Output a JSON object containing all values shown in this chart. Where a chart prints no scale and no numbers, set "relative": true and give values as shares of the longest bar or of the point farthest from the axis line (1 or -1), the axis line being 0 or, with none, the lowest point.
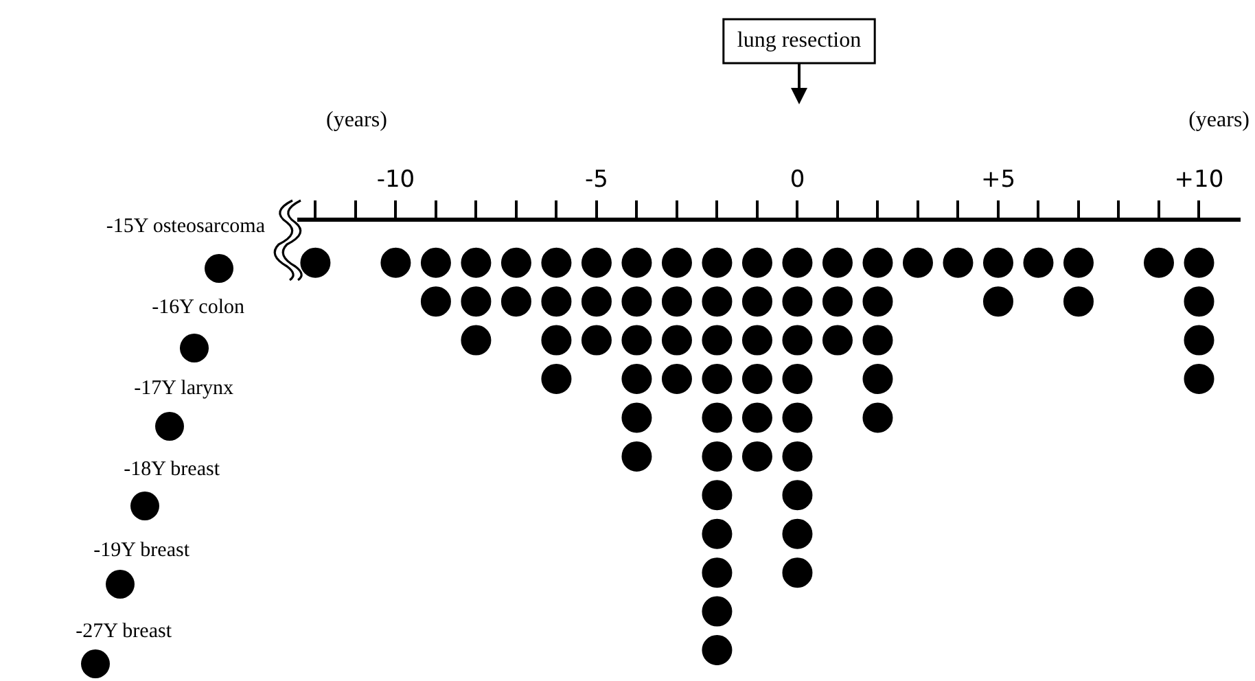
{
  "chart_data": {
    "type": "scatter",
    "xlabel": "(years)",
    "x": [
      -12,
      -10,
      -9,
      -9,
      -8,
      -8,
      -8,
      -7,
      -7,
      -6,
      -6,
      -6,
      -6,
      -5,
      -5,
      -5,
      -4,
      -4,
      -4,
      -4,
      -4,
      -4,
      -3,
      -3,
      -3,
      -3,
      -2,
      -2,
      -2,
      -2,
      -2,
      -2,
      -2,
      -2,
      -2,
      -2,
      -2,
      -1,
      -1,
      -1,
      -1,
      -1,
      -1,
      0,
      0,
      0,
      0,
      0,
      0,
      0,
      0,
      0,
      1,
      1,
      1,
      2,
      2,
      2,
      2,
      2,
      3,
      4,
      5,
      5,
      6,
      7,
      7,
      9,
      10,
      10,
      10,
      10
    ],
    "values": [
      -0.1,
      -0.1,
      -0.1,
      -0.19,
      -0.1,
      -0.19,
      -0.28,
      -0.1,
      -0.19,
      -0.1,
      -0.19,
      -0.28,
      -0.37,
      -0.1,
      -0.19,
      -0.28,
      -0.1,
      -0.19,
      -0.28,
      -0.37,
      -0.46,
      -0.55,
      -0.1,
      -0.19,
      -0.28,
      -0.37,
      -0.1,
      -0.19,
      -0.28,
      -0.37,
      -0.46,
      -0.55,
      -0.64,
      -0.73,
      -0.82,
      -0.91,
      -1,
      -0.1,
      -0.19,
      -0.28,
      -0.37,
      -0.46,
      -0.55,
      -0.1,
      -0.19,
      -0.28,
      -0.37,
      -0.46,
      -0.55,
      -0.64,
      -0.73,
      -0.82,
      -0.1,
      -0.19,
      -0.28,
      -0.1,
      -0.19,
      -0.28,
      -0.37,
      -0.46,
      -0.1,
      -0.1,
      -0.1,
      -0.19,
      -0.1,
      -0.1,
      -0.19,
      -0.1,
      -0.1,
      -0.19,
      -0.28,
      -0.37
    ],
    "relative": true,
    "color": "#000000",
    "marker": "circle",
    "xlim": [
      -12.4,
      11
    ],
    "xticks": [
      {
        "value": -12,
        "label": null
      },
      {
        "value": -11,
        "label": null
      },
      -10,
      {
        "value": -9,
        "label": null
      },
      {
        "value": -8,
        "label": null
      },
      {
        "value": -7,
        "label": null
      },
      {
        "value": -6,
        "label": null
      },
      -5,
      {
        "value": -4,
        "label": null
      },
      {
        "value": -3,
        "label": null
      },
      {
        "value": -2,
        "label": null
      },
      {
        "value": -1,
        "label": null
      },
      0,
      {
        "value": 1,
        "label": null
      },
      {
        "value": 2,
        "label": null
      },
      {
        "value": 3,
        "label": null
      },
      {
        "value": 4,
        "label": null
      },
      {
        "value": 5,
        "label": "+5"
      },
      {
        "value": 6,
        "label": null
      },
      {
        "value": 7,
        "label": null
      },
      {
        "value": 8,
        "label": null
      },
      {
        "value": 9,
        "label": null
      },
      {
        "value": 10,
        "label": "+10"
      }
    ],
    "tick_labels": "x",
    "grid": false,
    "legend": false,
    "annotations": [
      "lung resection",
      "-15Y osteosarcoma",
      "-16Y colon",
      "-17Y larynx",
      "-18Y breast",
      "-19Y breast",
      "-27Y breast"
    ]
  }
}
